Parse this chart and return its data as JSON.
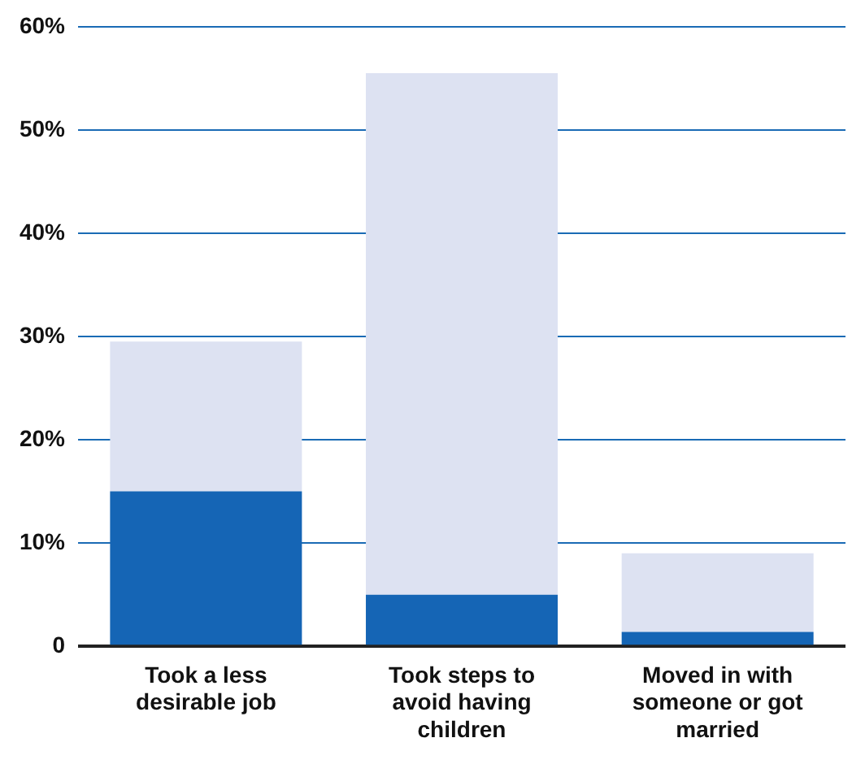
{
  "chart_data": {
    "type": "bar",
    "stacked": true,
    "categories": [
      "Took a less desirable job",
      "Took steps to avoid having children",
      "Moved in with someone or got married"
    ],
    "series": [
      {
        "color": "#1565b5",
        "values": [
          15,
          5,
          1.4
        ]
      },
      {
        "color": "#dde2f2",
        "values": [
          14.5,
          50.5,
          7.6
        ]
      }
    ],
    "ylim": [
      0,
      60
    ],
    "yticks": [
      {
        "value": 0,
        "label": "0"
      },
      {
        "value": 10,
        "label": "10%"
      },
      {
        "value": 20,
        "label": "20%"
      },
      {
        "value": 30,
        "label": "30%"
      },
      {
        "value": 40,
        "label": "40%"
      },
      {
        "value": 50,
        "label": "50%"
      },
      {
        "value": 60,
        "label": "60%"
      }
    ],
    "grid": "y"
  }
}
